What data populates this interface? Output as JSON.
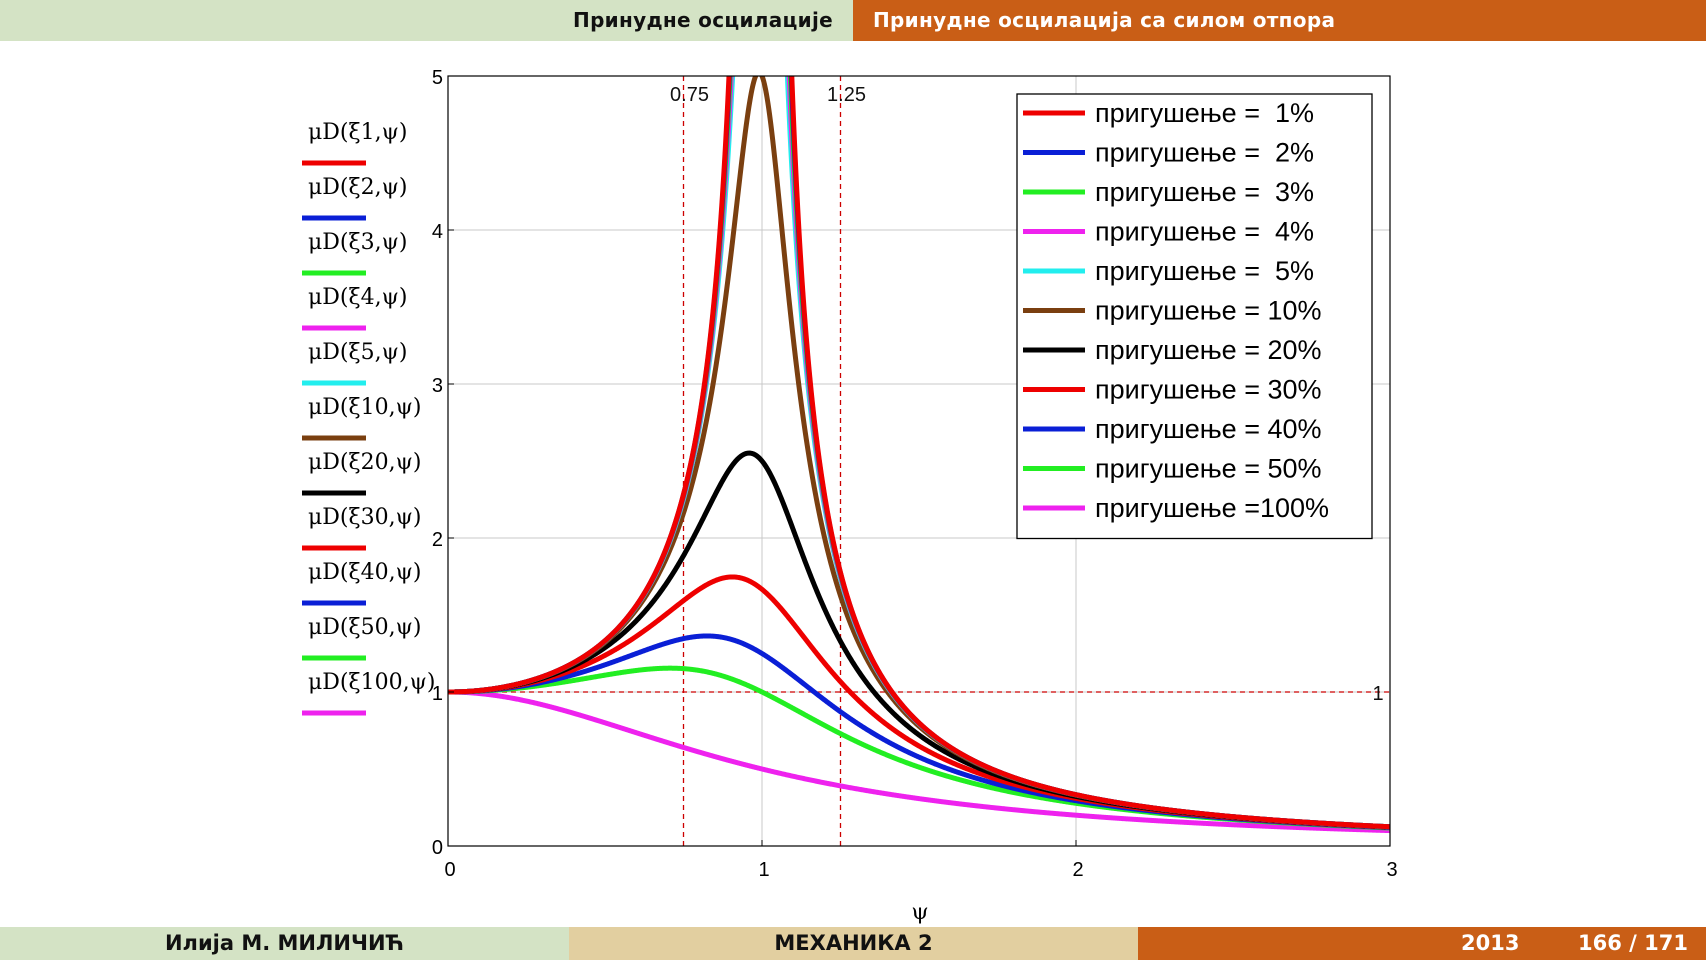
{
  "header": {
    "left_title": "Принудне осцилације",
    "right_title": "Принудне осцилација са силом отпора"
  },
  "footer": {
    "author": "Илија М. МИЛИЧИЋ",
    "course": "МЕХАНИКА 2",
    "year": "2013",
    "page": "166 / 171"
  },
  "colors": {
    "header_left_bg": "#d4e3c5",
    "header_right_bg": "#c95e16",
    "footer_mid_bg": "#e2cfa0"
  },
  "chart_data": {
    "type": "line",
    "xlabel": "ψ",
    "ylabel": "",
    "xlim": [
      0,
      3
    ],
    "ylim": [
      0,
      5
    ],
    "x_ticks": [
      "0",
      "1",
      "2",
      "3"
    ],
    "y_ticks": [
      "0",
      "1",
      "2",
      "3",
      "4",
      "5"
    ],
    "grid": true,
    "legend_position": "top-right",
    "function": "μD(ξ,ψ) = 1 / sqrt((1-ψ²)² + (2ξψ)²)",
    "annotations": [
      {
        "type": "vline",
        "x": 0.75,
        "label": "0.75",
        "color": "#cc0000",
        "style": "dashed"
      },
      {
        "type": "vline",
        "x": 1.25,
        "label": "1.25",
        "color": "#cc0000",
        "style": "dashed"
      },
      {
        "type": "hline",
        "y": 1,
        "label": "1",
        "color": "#cc0000",
        "style": "dashed"
      }
    ],
    "series": [
      {
        "name": "пригушење =  1%",
        "damping": 0.01,
        "axis_label": "μD(ξ1,ψ)",
        "color": "#ee0000"
      },
      {
        "name": "пригушење =  2%",
        "damping": 0.02,
        "axis_label": "μD(ξ2,ψ)",
        "color": "#0a1fd6"
      },
      {
        "name": "пригушење =  3%",
        "damping": 0.03,
        "axis_label": "μD(ξ3,ψ)",
        "color": "#22ee22"
      },
      {
        "name": "пригушење =  4%",
        "damping": 0.04,
        "axis_label": "μD(ξ4,ψ)",
        "color": "#ee22ee"
      },
      {
        "name": "пригушење =  5%",
        "damping": 0.05,
        "axis_label": "μD(ξ5,ψ)",
        "color": "#22eeee"
      },
      {
        "name": "пригушење = 10%",
        "damping": 0.1,
        "axis_label": "μD(ξ10,ψ)",
        "color": "#7a3f10"
      },
      {
        "name": "пригушење = 20%",
        "damping": 0.2,
        "axis_label": "μD(ξ20,ψ)",
        "color": "#000000"
      },
      {
        "name": "пригушење = 30%",
        "damping": 0.3,
        "axis_label": "μD(ξ30,ψ)",
        "color": "#ee0000"
      },
      {
        "name": "пригушење = 40%",
        "damping": 0.4,
        "axis_label": "μD(ξ40,ψ)",
        "color": "#0a1fd6"
      },
      {
        "name": "пригушење = 50%",
        "damping": 0.5,
        "axis_label": "μD(ξ50,ψ)",
        "color": "#22ee22"
      },
      {
        "name": "пригушење =100%",
        "damping": 1.0,
        "axis_label": "μD(ξ100,ψ)",
        "color": "#ee22ee"
      }
    ]
  }
}
